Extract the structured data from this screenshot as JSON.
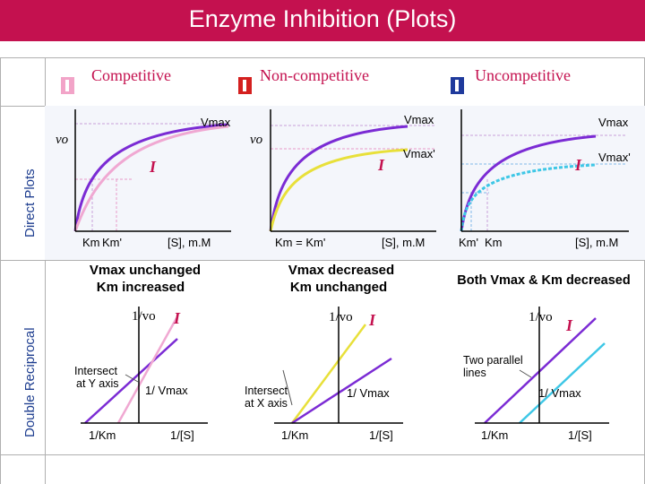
{
  "title": "Enzyme Inhibition (Plots)",
  "headers": {
    "competitive": "Competitive",
    "noncompetitive": "Non-competitive",
    "uncompetitive": "Uncompetitive"
  },
  "side_labels": {
    "direct": "Direct Plots",
    "reciprocal": "Double Reciprocal"
  },
  "colors": {
    "title_bar": "#c4114f",
    "uninhibited_curve": "#7b2bd4",
    "competitive_inhibited": "#f0a8d2",
    "noncompetitive_inhibited": "#e8e03a",
    "uncompetitive_inhibited": "#3ec7e6",
    "inhibitor_symbol": "#c4114f",
    "icon_competitive": "#f2a4c8",
    "icon_noncompetitive": "#d4201f",
    "icon_uncompetitive": "#1f3a9c"
  },
  "direct": {
    "competitive": {
      "vmax": "Vmax",
      "vo": "vo",
      "inhibitor": "I",
      "km": "Km",
      "km_prime": "Km'",
      "s_axis": "[S], m.M",
      "summary_line1": "Vmax unchanged",
      "summary_line2": "Km increased"
    },
    "noncompetitive": {
      "vmax": "Vmax",
      "vmax_prime": "Vmax'",
      "vo": "vo",
      "inhibitor": "I",
      "km_equal": "Km = Km'",
      "s_axis": "[S], m.M",
      "summary_line1": "Vmax decreased",
      "summary_line2": "Km unchanged"
    },
    "uncompetitive": {
      "vmax": "Vmax",
      "vmax_prime": "Vmax'",
      "inhibitor": "I",
      "km_prime": "Km'",
      "km": "Km",
      "s_axis": "[S], m.M",
      "summary": "Both Vmax & Km decreased"
    }
  },
  "reciprocal": {
    "competitive": {
      "y_axis": "1/vo",
      "inhibitor": "I",
      "intersect_line1": "Intersect",
      "intersect_line2": "at Y axis",
      "inv_vmax": "1/ Vmax",
      "inv_km": "1/Km",
      "inv_s": "1/[S]"
    },
    "noncompetitive": {
      "y_axis": "1/vo",
      "inhibitor": "I",
      "intersect_line1": "Intersect",
      "intersect_line2": "at X axis",
      "inv_vmax": "1/ Vmax",
      "inv_km": "1/Km",
      "inv_s": "1/[S]"
    },
    "uncompetitive": {
      "y_axis": "1/vo",
      "inhibitor": "I",
      "parallel_line1": "Two parallel",
      "parallel_line2": "lines",
      "inv_vmax": "1/ Vmax",
      "inv_km": "1/Km",
      "inv_s": "1/[S]"
    }
  }
}
